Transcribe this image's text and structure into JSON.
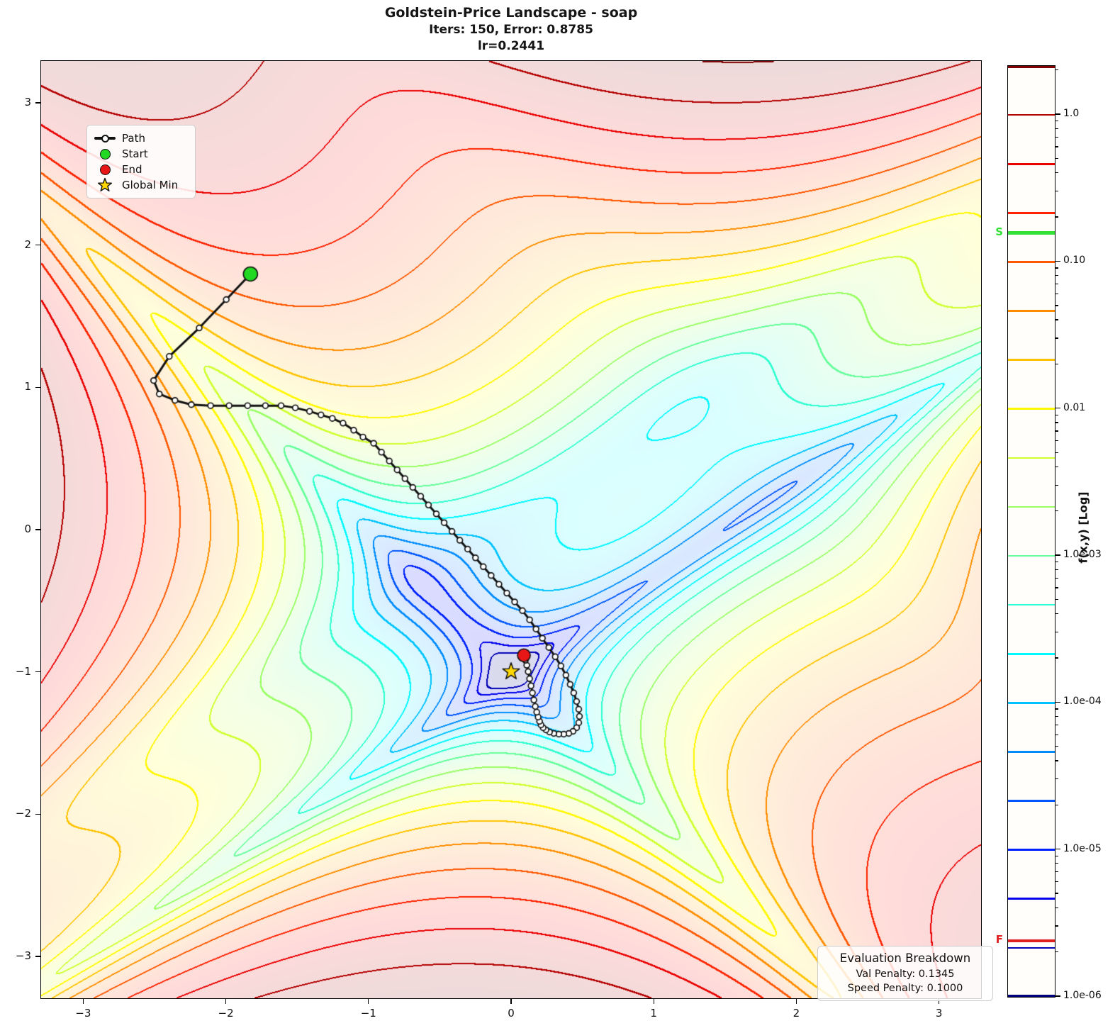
{
  "chart_data": {
    "type": "contour",
    "function": "Goldstein-Price",
    "title": "Goldstein-Price Landscape - soap",
    "subtitle": "Iters: 150, Error: 0.8785",
    "subtitle2": "lr=0.2441",
    "xlim": [
      -3.3,
      3.3
    ],
    "ylim": [
      -3.3,
      3.3
    ],
    "x_ticks": [
      {
        "value": -3,
        "label": "−3"
      },
      {
        "value": -2,
        "label": "−2"
      },
      {
        "value": -1,
        "label": "−1"
      },
      {
        "value": 0,
        "label": "0"
      },
      {
        "value": 1,
        "label": "1"
      },
      {
        "value": 2,
        "label": "2"
      },
      {
        "value": 3,
        "label": "3"
      }
    ],
    "y_ticks": [
      {
        "value": 3,
        "label": "3"
      },
      {
        "value": 2,
        "label": "2"
      },
      {
        "value": 1,
        "label": "1"
      },
      {
        "value": 0,
        "label": "0"
      },
      {
        "value": -1,
        "label": "−1"
      },
      {
        "value": -2,
        "label": "−2"
      },
      {
        "value": -3,
        "label": "−3"
      }
    ],
    "z_normalization": {
      "offset": 3,
      "scale": 4150000
    },
    "levels": {
      "log10_min": -6,
      "log10_max": 0.3333,
      "count": 20
    },
    "fill_alpha": 0.145,
    "colormap": "jet",
    "grid": false,
    "start_point": [
      -1.83,
      1.8
    ],
    "end_point": [
      0.09,
      -0.885
    ],
    "global_min": [
      0,
      -1
    ],
    "path_points": [
      [
        -1.83,
        1.8
      ],
      [
        -2.0,
        1.62
      ],
      [
        -2.19,
        1.42
      ],
      [
        -2.4,
        1.22
      ],
      [
        -2.51,
        1.05
      ],
      [
        -2.47,
        0.955
      ],
      [
        -2.36,
        0.91
      ],
      [
        -2.245,
        0.88
      ],
      [
        -2.11,
        0.873
      ],
      [
        -1.98,
        0.873
      ],
      [
        -1.85,
        0.873
      ],
      [
        -1.725,
        0.873
      ],
      [
        -1.615,
        0.873
      ],
      [
        -1.515,
        0.858
      ],
      [
        -1.415,
        0.833
      ],
      [
        -1.335,
        0.808
      ],
      [
        -1.255,
        0.783
      ],
      [
        -1.18,
        0.75
      ],
      [
        -1.105,
        0.7
      ],
      [
        -1.04,
        0.652
      ],
      [
        -0.965,
        0.608
      ],
      [
        -0.91,
        0.545
      ],
      [
        -0.855,
        0.483
      ],
      [
        -0.8,
        0.421
      ],
      [
        -0.745,
        0.359
      ],
      [
        -0.69,
        0.297
      ],
      [
        -0.635,
        0.235
      ],
      [
        -0.58,
        0.173
      ],
      [
        -0.525,
        0.111
      ],
      [
        -0.47,
        0.049
      ],
      [
        -0.415,
        -0.013
      ],
      [
        -0.36,
        -0.075
      ],
      [
        -0.305,
        -0.137
      ],
      [
        -0.25,
        -0.199
      ],
      [
        -0.195,
        -0.261
      ],
      [
        -0.14,
        -0.323
      ],
      [
        -0.085,
        -0.385
      ],
      [
        -0.03,
        -0.447
      ],
      [
        0.025,
        -0.509
      ],
      [
        0.08,
        -0.571
      ],
      [
        0.13,
        -0.635
      ],
      [
        0.175,
        -0.7
      ],
      [
        0.22,
        -0.765
      ],
      [
        0.265,
        -0.83
      ],
      [
        0.31,
        -0.895
      ],
      [
        0.35,
        -0.96
      ],
      [
        0.385,
        -1.025
      ],
      [
        0.415,
        -1.09
      ],
      [
        0.44,
        -1.15
      ],
      [
        0.46,
        -1.21
      ],
      [
        0.475,
        -1.265
      ],
      [
        0.48,
        -1.315
      ],
      [
        0.475,
        -1.36
      ],
      [
        0.46,
        -1.395
      ],
      [
        0.435,
        -1.42
      ],
      [
        0.405,
        -1.435
      ],
      [
        0.37,
        -1.44
      ],
      [
        0.335,
        -1.44
      ],
      [
        0.3,
        -1.435
      ],
      [
        0.27,
        -1.425
      ],
      [
        0.245,
        -1.41
      ],
      [
        0.225,
        -1.395
      ],
      [
        0.21,
        -1.375
      ],
      [
        0.2,
        -1.35
      ],
      [
        0.19,
        -1.32
      ],
      [
        0.18,
        -1.285
      ],
      [
        0.17,
        -1.245
      ],
      [
        0.16,
        -1.2
      ],
      [
        0.15,
        -1.15
      ],
      [
        0.14,
        -1.1
      ],
      [
        0.13,
        -1.05
      ],
      [
        0.12,
        -1.0
      ],
      [
        0.11,
        -0.955
      ],
      [
        0.1,
        -0.92
      ],
      [
        0.09,
        -0.885
      ]
    ],
    "colorbar": {
      "axis_label": "f(x,y) [Log]",
      "ticks": [
        {
          "label": "1.0",
          "value": 1.0
        },
        {
          "label": "0.10",
          "value": 0.1
        },
        {
          "label": "0.01",
          "value": 0.01
        },
        {
          "label": "1.0e-03",
          "value": 0.001
        },
        {
          "label": "1.0e-04",
          "value": 0.0001
        },
        {
          "label": "1.0e-05",
          "value": 1e-05
        },
        {
          "label": "1.0e-06",
          "value": 1e-06
        }
      ],
      "start_marker": {
        "label": "S",
        "value": 0.157,
        "color": "#35e035"
      },
      "final_marker": {
        "label": "F",
        "value": 2.4e-06,
        "color": "#e02020"
      }
    }
  },
  "legend": {
    "items": [
      {
        "label": "Path",
        "marker": "line-with-circle"
      },
      {
        "label": "Start",
        "marker": "green-circle"
      },
      {
        "label": "End",
        "marker": "red-circle"
      },
      {
        "label": "Global Min",
        "marker": "gold-star"
      }
    ]
  },
  "eval_box": {
    "title": "Evaluation Breakdown",
    "lines": [
      "Val Penalty: 0.1345",
      "Speed Penalty: 0.1000"
    ]
  },
  "marker_colors": {
    "start_fill": "#22d822",
    "end_fill": "#e81717",
    "star_fill": "#ffd700",
    "path_color": "#111111"
  }
}
